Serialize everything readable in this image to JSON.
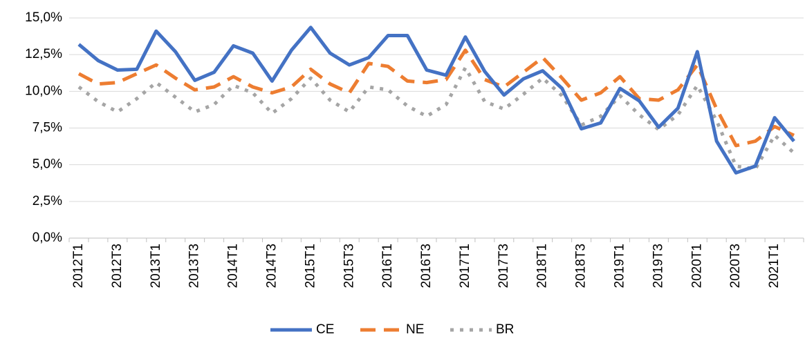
{
  "chart_data": {
    "type": "line",
    "categories": [
      "2012T1",
      null,
      "2012T3",
      null,
      "2013T1",
      null,
      "2013T3",
      null,
      "2014T1",
      null,
      "2014T3",
      null,
      "2015T1",
      null,
      "2015T3",
      null,
      "2016T1",
      null,
      "2016T3",
      null,
      "2017T1",
      null,
      "2017T3",
      null,
      "2018T1",
      null,
      "2018T3",
      null,
      "2019T1",
      null,
      "2019T3",
      null,
      "2020T1",
      null,
      "2020T3",
      null,
      "2021T1",
      null
    ],
    "series": [
      {
        "name": "CE",
        "color": "#4472c4",
        "dash": "solid",
        "values": [
          13.2,
          12.1,
          11.45,
          11.5,
          14.1,
          12.7,
          10.75,
          11.3,
          13.1,
          12.6,
          10.7,
          12.8,
          14.35,
          12.6,
          11.8,
          12.3,
          13.8,
          13.8,
          11.45,
          11.1,
          13.7,
          11.35,
          9.75,
          10.85,
          11.4,
          10.2,
          7.45,
          7.85,
          10.2,
          9.35,
          7.55,
          8.85,
          12.7,
          6.6,
          4.45,
          4.9,
          8.2,
          6.6
        ]
      },
      {
        "name": "NE",
        "color": "#ed7d31",
        "dash": "dashed",
        "values": [
          11.2,
          10.5,
          10.6,
          11.2,
          11.8,
          10.9,
          10.1,
          10.3,
          11.0,
          10.3,
          9.9,
          10.3,
          11.5,
          10.5,
          9.9,
          11.9,
          11.7,
          10.7,
          10.6,
          10.8,
          12.8,
          10.8,
          10.3,
          11.3,
          12.3,
          10.9,
          9.4,
          9.9,
          11.0,
          9.5,
          9.4,
          10.1,
          11.8,
          8.8,
          6.3,
          6.6,
          7.6,
          7.0
        ]
      },
      {
        "name": "BR",
        "color": "#a5a5a5",
        "dash": "dotted",
        "values": [
          10.3,
          9.3,
          8.6,
          9.5,
          10.6,
          9.6,
          8.6,
          9.1,
          10.4,
          9.9,
          8.5,
          9.5,
          10.9,
          9.4,
          8.6,
          10.3,
          10.1,
          9.0,
          8.3,
          9.1,
          11.6,
          9.3,
          8.8,
          9.8,
          10.9,
          9.7,
          7.7,
          8.3,
          9.7,
          8.4,
          7.4,
          8.4,
          10.4,
          8.0,
          4.9,
          4.7,
          7.0,
          5.8
        ]
      }
    ],
    "ylim": [
      0,
      15
    ],
    "yticks": [
      {
        "value": 0,
        "label": "0,0%"
      },
      {
        "value": 2.5,
        "label": "2,5%"
      },
      {
        "value": 5,
        "label": "5,0%"
      },
      {
        "value": 7.5,
        "label": "7,5%"
      },
      {
        "value": 10,
        "label": "10,0%"
      },
      {
        "value": 12.5,
        "label": "12,5%"
      },
      {
        "value": 15,
        "label": "15,0%"
      }
    ],
    "grid": true,
    "legend": "bottom"
  }
}
